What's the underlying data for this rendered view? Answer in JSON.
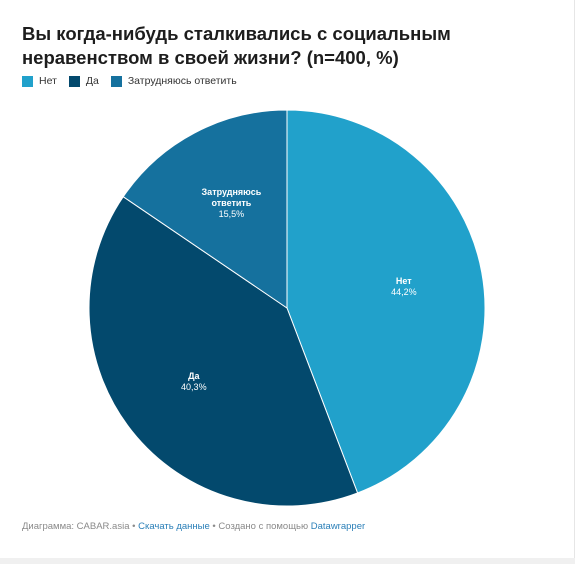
{
  "chart_data": {
    "type": "pie",
    "title": "Вы когда-нибудь сталкивались с социальным неравенством в своей жизни? (n=400, %)",
    "slices": [
      {
        "label": "Нет",
        "label_lines": [
          "Нет"
        ],
        "value": 44.2,
        "display": "44,2%",
        "color": "#21a1cb"
      },
      {
        "label": "Да",
        "label_lines": [
          "Да"
        ],
        "value": 40.3,
        "display": "40,3%",
        "color": "#03496d"
      },
      {
        "label": "Затрудняюсь ответить",
        "label_lines": [
          "Затрудняюсь",
          "ответить"
        ],
        "value": 15.5,
        "display": "15,5%",
        "color": "#15719e"
      }
    ],
    "legend_placement": "top-left"
  },
  "footer": {
    "prefix": "Диаграмма: CABAR.asia",
    "sep1": " • ",
    "download": "Скачать данные",
    "sep2": " • Создано с помощью ",
    "tool": "Datawrapper"
  }
}
